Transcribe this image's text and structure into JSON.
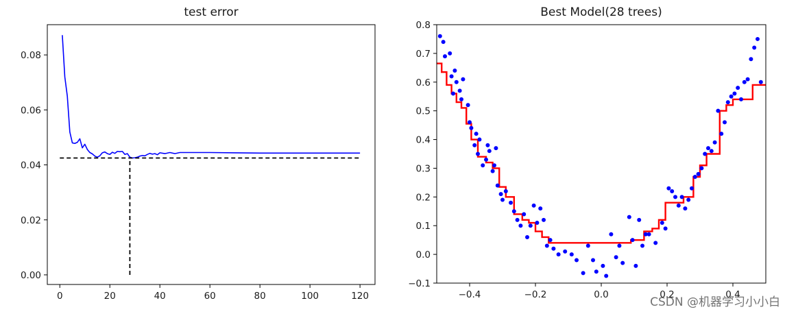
{
  "watermark": "CSDN @机器学习小小白",
  "chart_data": [
    {
      "type": "line",
      "title": "test error",
      "xlabel": "",
      "ylabel": "",
      "xlim": [
        -5,
        126
      ],
      "ylim": [
        -0.0035,
        0.091
      ],
      "xticks": [
        0,
        20,
        40,
        60,
        80,
        100,
        120
      ],
      "xtick_labels": [
        "0",
        "20",
        "40",
        "60",
        "80",
        "100",
        "120"
      ],
      "yticks": [
        0.0,
        0.02,
        0.04,
        0.06,
        0.08
      ],
      "ytick_labels": [
        "0.00",
        "0.02",
        "0.04",
        "0.06",
        "0.08"
      ],
      "grid": false,
      "series": [
        {
          "color": "#0000ff",
          "style": "solid",
          "x": [
            1,
            2,
            3,
            4,
            5,
            6,
            7,
            8,
            9,
            10,
            11,
            12,
            13,
            14,
            15,
            16,
            17,
            18,
            19,
            20,
            21,
            22,
            23,
            24,
            25,
            26,
            27,
            28,
            29,
            30,
            31,
            32,
            33,
            34,
            35,
            36,
            37,
            38,
            39,
            40,
            42,
            44,
            46,
            48,
            50,
            55,
            60,
            70,
            80,
            90,
            100,
            110,
            120
          ],
          "y": [
            0.0872,
            0.072,
            0.065,
            0.052,
            0.048,
            0.0478,
            0.0482,
            0.0495,
            0.0462,
            0.0475,
            0.0456,
            0.0445,
            0.044,
            0.0432,
            0.0428,
            0.0433,
            0.0444,
            0.0447,
            0.0441,
            0.0438,
            0.0446,
            0.0442,
            0.0449,
            0.0448,
            0.0449,
            0.0438,
            0.0441,
            0.0428,
            0.0425,
            0.0426,
            0.0428,
            0.0432,
            0.0434,
            0.0433,
            0.0438,
            0.0442,
            0.0439,
            0.0441,
            0.0437,
            0.0444,
            0.0441,
            0.0445,
            0.0441,
            0.0445,
            0.0445,
            0.0445,
            0.0445,
            0.0444,
            0.0443,
            0.0443,
            0.0443,
            0.0443,
            0.0443
          ]
        },
        {
          "color": "#000000",
          "style": "dashed",
          "x": [
            0,
            120
          ],
          "y": [
            0.0425,
            0.0425
          ]
        },
        {
          "color": "#000000",
          "style": "dashed",
          "x": [
            28,
            28
          ],
          "y": [
            0.0,
            0.0425
          ]
        }
      ]
    },
    {
      "type": "scatter",
      "title": "Best Model(28 trees)",
      "xlabel": "",
      "ylabel": "",
      "xlim": [
        -0.5,
        0.5
      ],
      "ylim": [
        -0.1,
        0.8
      ],
      "xticks": [
        -0.4,
        -0.2,
        0.0,
        0.2,
        0.4
      ],
      "xtick_labels": [
        "−0.4",
        "−0.2",
        "0.0",
        "0.2",
        "0.4"
      ],
      "yticks": [
        -0.1,
        0.0,
        0.1,
        0.2,
        0.3,
        0.4,
        0.5,
        0.6,
        0.7,
        0.8
      ],
      "ytick_labels": [
        "−0.1",
        "0.0",
        "0.1",
        "0.2",
        "0.3",
        "0.4",
        "0.5",
        "0.6",
        "0.7",
        "0.8"
      ],
      "grid": false,
      "points": {
        "color": "#0000ff",
        "x": [
          -0.49,
          -0.48,
          -0.475,
          -0.46,
          -0.455,
          -0.45,
          -0.445,
          -0.44,
          -0.43,
          -0.425,
          -0.42,
          -0.405,
          -0.4,
          -0.395,
          -0.385,
          -0.38,
          -0.375,
          -0.37,
          -0.36,
          -0.35,
          -0.345,
          -0.34,
          -0.33,
          -0.325,
          -0.32,
          -0.315,
          -0.305,
          -0.3,
          -0.29,
          -0.275,
          -0.265,
          -0.255,
          -0.245,
          -0.235,
          -0.225,
          -0.215,
          -0.205,
          -0.195,
          -0.185,
          -0.175,
          -0.165,
          -0.155,
          -0.145,
          -0.13,
          -0.11,
          -0.09,
          -0.075,
          -0.055,
          -0.04,
          -0.025,
          -0.015,
          0.005,
          0.015,
          0.03,
          0.045,
          0.055,
          0.065,
          0.085,
          0.095,
          0.105,
          0.115,
          0.125,
          0.135,
          0.145,
          0.165,
          0.185,
          0.195,
          0.205,
          0.215,
          0.225,
          0.235,
          0.245,
          0.255,
          0.265,
          0.275,
          0.285,
          0.295,
          0.305,
          0.315,
          0.325,
          0.335,
          0.345,
          0.355,
          0.365,
          0.375,
          0.385,
          0.395,
          0.405,
          0.415,
          0.425,
          0.435,
          0.445,
          0.455,
          0.465,
          0.475,
          0.485
        ],
        "y": [
          0.76,
          0.74,
          0.69,
          0.7,
          0.62,
          0.56,
          0.64,
          0.6,
          0.57,
          0.54,
          0.61,
          0.52,
          0.46,
          0.44,
          0.38,
          0.42,
          0.35,
          0.4,
          0.31,
          0.33,
          0.38,
          0.36,
          0.29,
          0.31,
          0.37,
          0.24,
          0.21,
          0.19,
          0.22,
          0.18,
          0.15,
          0.12,
          0.1,
          0.14,
          0.06,
          0.1,
          0.17,
          0.11,
          0.16,
          0.12,
          0.03,
          0.05,
          0.02,
          0.0,
          0.01,
          0.0,
          -0.02,
          -0.065,
          0.03,
          -0.02,
          -0.06,
          -0.04,
          -0.075,
          0.07,
          -0.01,
          0.03,
          -0.03,
          0.13,
          0.05,
          -0.04,
          0.12,
          0.03,
          0.07,
          0.07,
          0.04,
          0.11,
          0.09,
          0.23,
          0.22,
          0.2,
          0.17,
          0.2,
          0.16,
          0.19,
          0.23,
          0.27,
          0.28,
          0.3,
          0.35,
          0.37,
          0.36,
          0.39,
          0.5,
          0.42,
          0.46,
          0.53,
          0.55,
          0.56,
          0.58,
          0.54,
          0.6,
          0.61,
          0.68,
          0.72,
          0.75,
          0.6
        ]
      },
      "step_line": {
        "color": "#ff0000",
        "x": [
          -0.5,
          -0.485,
          -0.485,
          -0.47,
          -0.47,
          -0.455,
          -0.455,
          -0.44,
          -0.44,
          -0.425,
          -0.425,
          -0.41,
          -0.41,
          -0.395,
          -0.395,
          -0.375,
          -0.375,
          -0.35,
          -0.35,
          -0.33,
          -0.33,
          -0.31,
          -0.31,
          -0.29,
          -0.29,
          -0.265,
          -0.265,
          -0.24,
          -0.24,
          -0.22,
          -0.22,
          -0.2,
          -0.2,
          -0.18,
          -0.18,
          -0.16,
          -0.16,
          -0.14,
          -0.14,
          0.05,
          0.05,
          0.09,
          0.09,
          0.11,
          0.11,
          0.13,
          0.13,
          0.155,
          0.155,
          0.175,
          0.175,
          0.195,
          0.195,
          0.22,
          0.22,
          0.25,
          0.25,
          0.28,
          0.28,
          0.3,
          0.3,
          0.32,
          0.32,
          0.34,
          0.34,
          0.36,
          0.36,
          0.38,
          0.38,
          0.4,
          0.4,
          0.44,
          0.44,
          0.46,
          0.46,
          0.5
        ],
        "y": [
          0.665,
          0.665,
          0.635,
          0.635,
          0.59,
          0.59,
          0.56,
          0.56,
          0.53,
          0.53,
          0.51,
          0.51,
          0.455,
          0.455,
          0.4,
          0.4,
          0.34,
          0.34,
          0.32,
          0.32,
          0.3,
          0.3,
          0.235,
          0.235,
          0.2,
          0.2,
          0.14,
          0.14,
          0.12,
          0.12,
          0.11,
          0.11,
          0.08,
          0.08,
          0.06,
          0.06,
          0.04,
          0.04,
          0.04,
          0.04,
          0.04,
          0.04,
          0.05,
          0.05,
          0.05,
          0.05,
          0.08,
          0.08,
          0.09,
          0.09,
          0.12,
          0.12,
          0.18,
          0.18,
          0.18,
          0.18,
          0.2,
          0.2,
          0.27,
          0.27,
          0.31,
          0.31,
          0.35,
          0.35,
          0.35,
          0.35,
          0.5,
          0.5,
          0.52,
          0.52,
          0.54,
          0.54,
          0.54,
          0.54,
          0.59,
          0.59
        ]
      }
    }
  ]
}
